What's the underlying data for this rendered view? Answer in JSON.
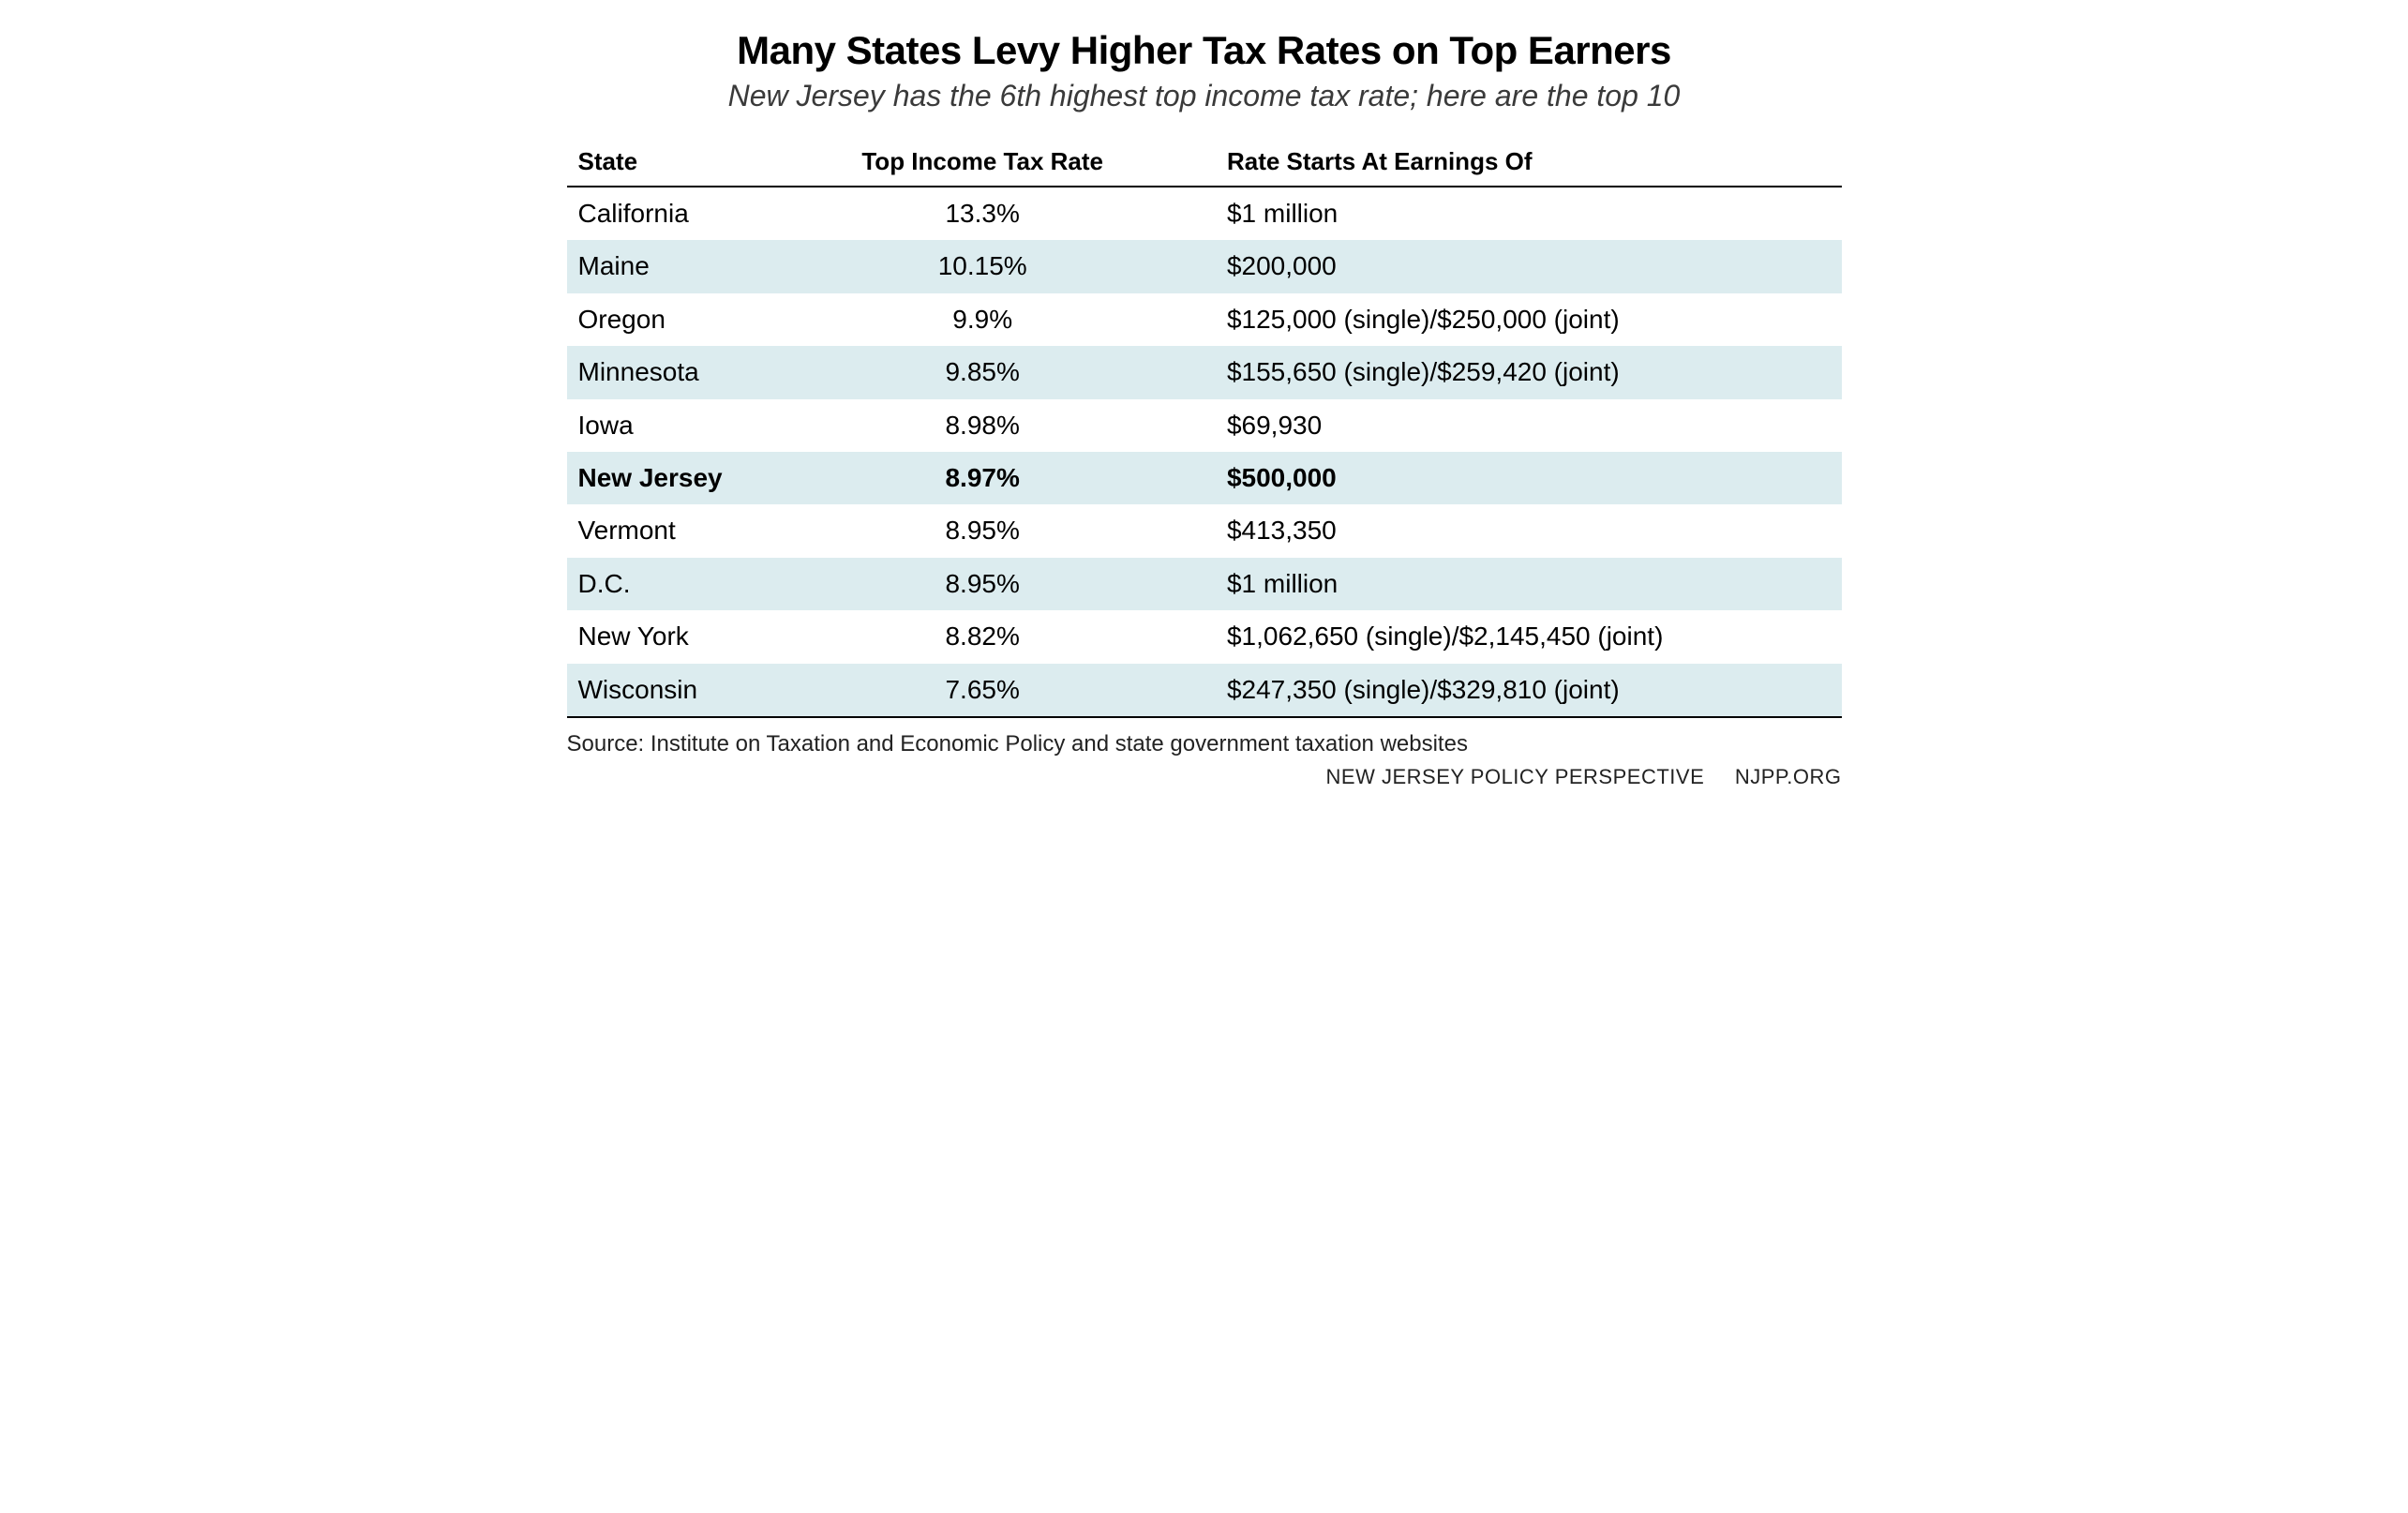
{
  "header": {
    "title": "Many States Levy Higher Tax Rates on Top Earners",
    "subtitle": "New Jersey has the 6th highest top income tax rate; here are the top 10"
  },
  "table": {
    "type": "table",
    "stripe_color": "#dcecef",
    "background_color": "#ffffff",
    "border_color": "#000000",
    "header_fontsize": 26,
    "body_fontsize": 28,
    "bold_row_index": 5,
    "columns": [
      {
        "key": "state",
        "label": "State",
        "align": "left"
      },
      {
        "key": "rate",
        "label": "Top Income Tax Rate",
        "align": "center"
      },
      {
        "key": "threshold",
        "label": "Rate Starts At Earnings Of",
        "align": "left"
      }
    ],
    "rows": [
      {
        "state": "California",
        "rate": "13.3%",
        "threshold": "$1 million"
      },
      {
        "state": "Maine",
        "rate": "10.15%",
        "threshold": "$200,000"
      },
      {
        "state": "Oregon",
        "rate": "9.9%",
        "threshold": "$125,000 (single)/$250,000 (joint)"
      },
      {
        "state": "Minnesota",
        "rate": "9.85%",
        "threshold": "$155,650 (single)/$259,420 (joint)"
      },
      {
        "state": "Iowa",
        "rate": "8.98%",
        "threshold": "$69,930"
      },
      {
        "state": "New Jersey",
        "rate": "8.97%",
        "threshold": "$500,000"
      },
      {
        "state": "Vermont",
        "rate": "8.95%",
        "threshold": "$413,350"
      },
      {
        "state": "D.C.",
        "rate": "8.95%",
        "threshold": "$1 million"
      },
      {
        "state": "New York",
        "rate": "8.82%",
        "threshold": "$1,062,650 (single)/$2,145,450 (joint)"
      },
      {
        "state": "Wisconsin",
        "rate": "7.65%",
        "threshold": "$247,350 (single)/$329,810 (joint)"
      }
    ]
  },
  "source": "Source: Institute on Taxation and Economic Policy and state government taxation websites",
  "footer": {
    "org": "NEW JERSEY POLICY PERSPECTIVE",
    "url": "NJPP.ORG"
  }
}
